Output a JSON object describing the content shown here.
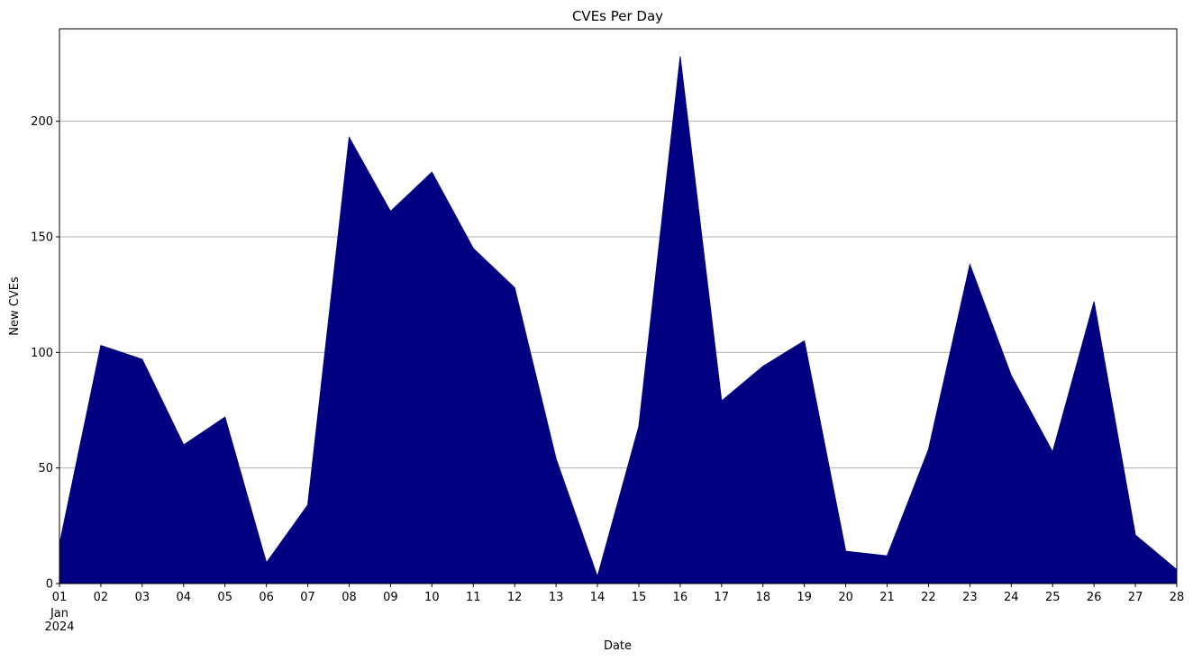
{
  "chart_data": {
    "type": "area",
    "title": "CVEs Per Day",
    "xlabel": "Date",
    "ylabel": "New CVEs",
    "x": [
      "2024-01-01",
      "2024-01-02",
      "2024-01-03",
      "2024-01-04",
      "2024-01-05",
      "2024-01-06",
      "2024-01-07",
      "2024-01-08",
      "2024-01-09",
      "2024-01-10",
      "2024-01-11",
      "2024-01-12",
      "2024-01-13",
      "2024-01-14",
      "2024-01-15",
      "2024-01-16",
      "2024-01-17",
      "2024-01-18",
      "2024-01-19",
      "2024-01-20",
      "2024-01-21",
      "2024-01-22",
      "2024-01-23",
      "2024-01-24",
      "2024-01-25",
      "2024-01-26",
      "2024-01-27",
      "2024-01-28"
    ],
    "values": [
      17,
      103,
      97,
      60,
      72,
      9,
      34,
      193,
      161,
      178,
      145,
      128,
      54,
      3,
      68,
      228,
      79,
      94,
      105,
      14,
      12,
      58,
      138,
      90,
      57,
      122,
      21,
      6
    ],
    "x_tick_labels": [
      "01",
      "02",
      "03",
      "04",
      "05",
      "06",
      "07",
      "08",
      "09",
      "10",
      "11",
      "12",
      "13",
      "14",
      "15",
      "16",
      "17",
      "18",
      "19",
      "20",
      "21",
      "22",
      "23",
      "24",
      "25",
      "26",
      "27",
      "28"
    ],
    "x_tick_sublabels": [
      "Jan",
      "2024"
    ],
    "y_ticks": [
      0,
      50,
      100,
      150,
      200
    ],
    "ylim": [
      0,
      240
    ],
    "grid": "y",
    "fill_color": "#000080",
    "grid_color": "#b0b0b0"
  }
}
